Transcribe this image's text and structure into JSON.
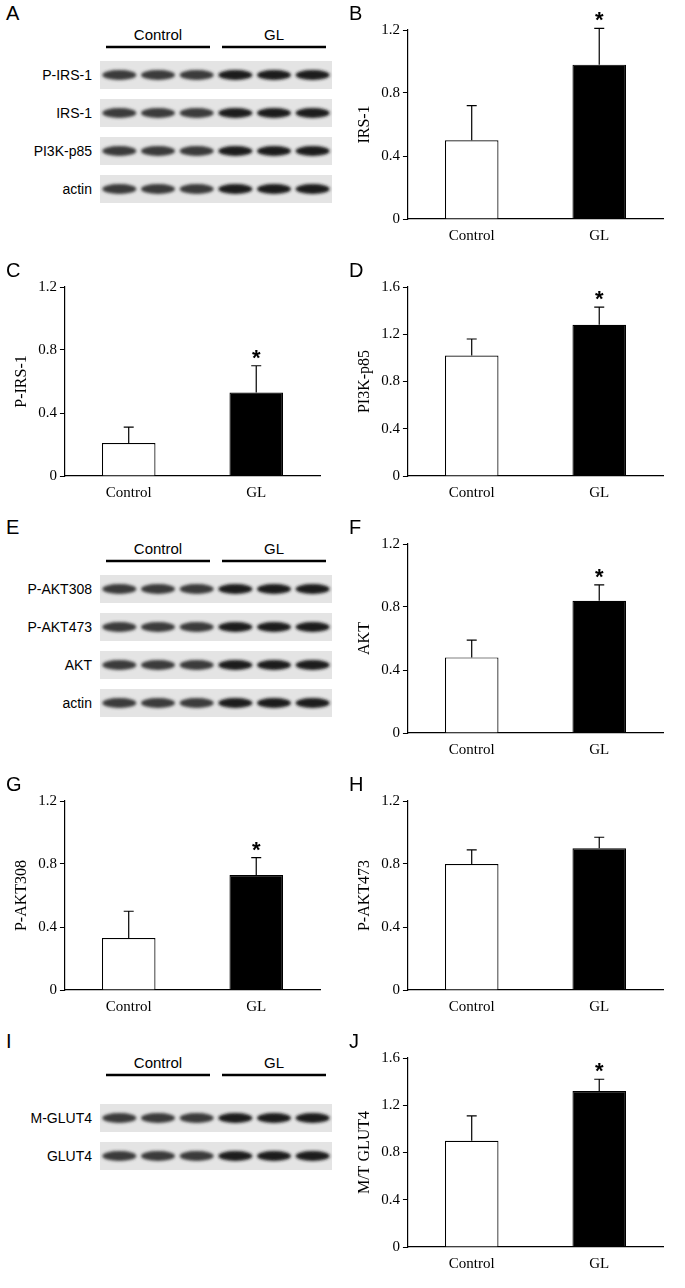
{
  "chart_data": [
    {
      "type": "bar",
      "panel": "B",
      "categories": [
        "Control",
        "GL"
      ],
      "values": [
        0.5,
        0.98
      ],
      "errors": [
        0.22,
        0.23
      ],
      "colors": [
        "#ffffff",
        "#000000"
      ],
      "y_label": "IRS-1",
      "ylim": [
        0,
        1.2
      ],
      "yticks": [
        0,
        0.4,
        0.8,
        1.2
      ],
      "grid": false,
      "annotations": [
        {
          "text": "*",
          "category": "GL"
        }
      ]
    },
    {
      "type": "bar",
      "panel": "C",
      "categories": [
        "Control",
        "GL"
      ],
      "values": [
        0.21,
        0.53
      ],
      "errors": [
        0.1,
        0.17
      ],
      "colors": [
        "#ffffff",
        "#000000"
      ],
      "y_label": "P-IRS-1",
      "ylim": [
        0,
        1.2
      ],
      "yticks": [
        0,
        0.4,
        0.8,
        1.2
      ],
      "grid": false,
      "annotations": [
        {
          "text": "*",
          "category": "GL"
        }
      ]
    },
    {
      "type": "bar",
      "panel": "D",
      "categories": [
        "Control",
        "GL"
      ],
      "values": [
        1.02,
        1.28
      ],
      "errors": [
        0.14,
        0.15
      ],
      "colors": [
        "#ffffff",
        "#000000"
      ],
      "y_label": "PI3K-p85",
      "ylim": [
        0,
        1.6
      ],
      "yticks": [
        0,
        0.4,
        0.8,
        1.2,
        1.6
      ],
      "grid": false,
      "annotations": [
        {
          "text": "*",
          "category": "GL"
        }
      ]
    },
    {
      "type": "bar",
      "panel": "F",
      "categories": [
        "Control",
        "GL"
      ],
      "values": [
        0.48,
        0.84
      ],
      "errors": [
        0.11,
        0.1
      ],
      "colors": [
        "#ffffff",
        "#000000"
      ],
      "y_label": "AKT",
      "ylim": [
        0,
        1.2
      ],
      "yticks": [
        0,
        0.4,
        0.8,
        1.2
      ],
      "grid": false,
      "annotations": [
        {
          "text": "*",
          "category": "GL"
        }
      ]
    },
    {
      "type": "bar",
      "panel": "G",
      "categories": [
        "Control",
        "GL"
      ],
      "values": [
        0.33,
        0.73
      ],
      "errors": [
        0.17,
        0.11
      ],
      "colors": [
        "#ffffff",
        "#000000"
      ],
      "y_label": "P-AKT308",
      "ylim": [
        0,
        1.2
      ],
      "yticks": [
        0,
        0.4,
        0.8,
        1.2
      ],
      "grid": false,
      "annotations": [
        {
          "text": "*",
          "category": "GL"
        }
      ]
    },
    {
      "type": "bar",
      "panel": "H",
      "categories": [
        "Control",
        "GL"
      ],
      "values": [
        0.8,
        0.9
      ],
      "errors": [
        0.09,
        0.07
      ],
      "colors": [
        "#ffffff",
        "#000000"
      ],
      "y_label": "P-AKT473",
      "ylim": [
        0,
        1.2
      ],
      "yticks": [
        0,
        0.4,
        0.8,
        1.2
      ],
      "grid": false,
      "annotations": []
    },
    {
      "type": "bar",
      "panel": "J",
      "categories": [
        "Control",
        "GL"
      ],
      "values": [
        0.9,
        1.32
      ],
      "errors": [
        0.21,
        0.1
      ],
      "colors": [
        "#ffffff",
        "#000000"
      ],
      "y_label": "M/T GLUT4",
      "ylim": [
        0,
        1.6
      ],
      "yticks": [
        0,
        0.4,
        0.8,
        1.2,
        1.6
      ],
      "grid": false,
      "annotations": [
        {
          "text": "*",
          "category": "GL"
        }
      ]
    }
  ],
  "blots": [
    {
      "panel": "A",
      "groups": [
        "Control",
        "GL"
      ],
      "rows": [
        "P-IRS-1",
        "IRS-1",
        "PI3K-p85",
        "actin"
      ]
    },
    {
      "panel": "E",
      "groups": [
        "Control",
        "GL"
      ],
      "rows": [
        "P-AKT308",
        "P-AKT473",
        "AKT",
        "actin"
      ]
    },
    {
      "panel": "I",
      "groups": [
        "Control",
        "GL"
      ],
      "rows": [
        "M-GLUT4",
        "GLUT4"
      ]
    }
  ]
}
